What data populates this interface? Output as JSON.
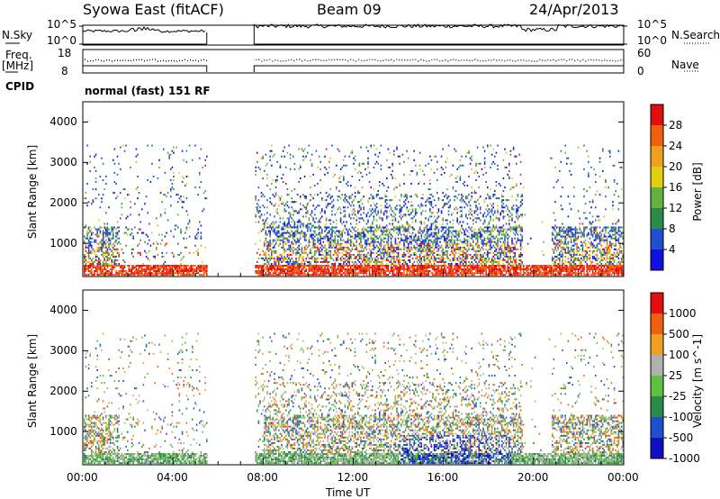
{
  "header": {
    "station": "Syowa East (fitACF)",
    "beam": "Beam 09",
    "date": "24/Apr/2013"
  },
  "panels": {
    "nsky_label": "N.Sky",
    "nsearch_label": "N.Search",
    "nsky_ticks": [
      "10^5",
      "10^0"
    ],
    "nsearch_ticks": [
      "10^5",
      "10^0"
    ],
    "freq_label_top": "Freq.",
    "freq_label_bottom": "[MHz]",
    "freq_ticks": [
      "18",
      "8"
    ],
    "nave_label": "Nave",
    "nave_ticks": [
      "60",
      "0"
    ],
    "cpid_label": "CPID",
    "cpid_text": "normal (fast) 151 RF"
  },
  "colors": {
    "power": [
      "#1010e0",
      "#2050d0",
      "#2a8a4a",
      "#66b040",
      "#e0d010",
      "#f0a020",
      "#f06010",
      "#e01010"
    ],
    "velocity": [
      "#e01010",
      "#f06010",
      "#f0a020",
      "#b0b0b0",
      "#60c040",
      "#2a8a4a",
      "#2050d0",
      "#1010c0"
    ]
  },
  "chart_data": [
    {
      "type": "heatmap",
      "name": "power",
      "ylabel": "Slant Range [km]",
      "yticks": [
        "1000",
        "2000",
        "3000",
        "4000"
      ],
      "xticks": [
        "00:00",
        "04:00",
        "08:00",
        "12:00",
        "16:00",
        "20:00",
        "00:00"
      ],
      "colorbar_label": "Power [dB]",
      "colorbar_ticks": [
        "4",
        "8",
        "12",
        "16",
        "20",
        "24",
        "28"
      ],
      "ylim": [
        180,
        4500
      ],
      "xlim_hours": [
        0,
        24
      ],
      "data_gap_hours": [
        5.5,
        7.6
      ]
    },
    {
      "type": "heatmap",
      "name": "velocity",
      "ylabel": "Slant Range [km]",
      "yticks": [
        "1000",
        "2000",
        "3000",
        "4000"
      ],
      "xticks": [
        "00:00",
        "04:00",
        "08:00",
        "12:00",
        "16:00",
        "20:00",
        "00:00"
      ],
      "xlabel": "Time UT",
      "colorbar_label": "Velocity [m s^-1]",
      "colorbar_ticks": [
        "1000",
        "500",
        "100",
        "25",
        "-25",
        "-100",
        "-500",
        "-1000"
      ],
      "ylim": [
        180,
        4500
      ],
      "xlim_hours": [
        0,
        24
      ],
      "data_gap_hours": [
        5.5,
        7.6
      ]
    }
  ]
}
